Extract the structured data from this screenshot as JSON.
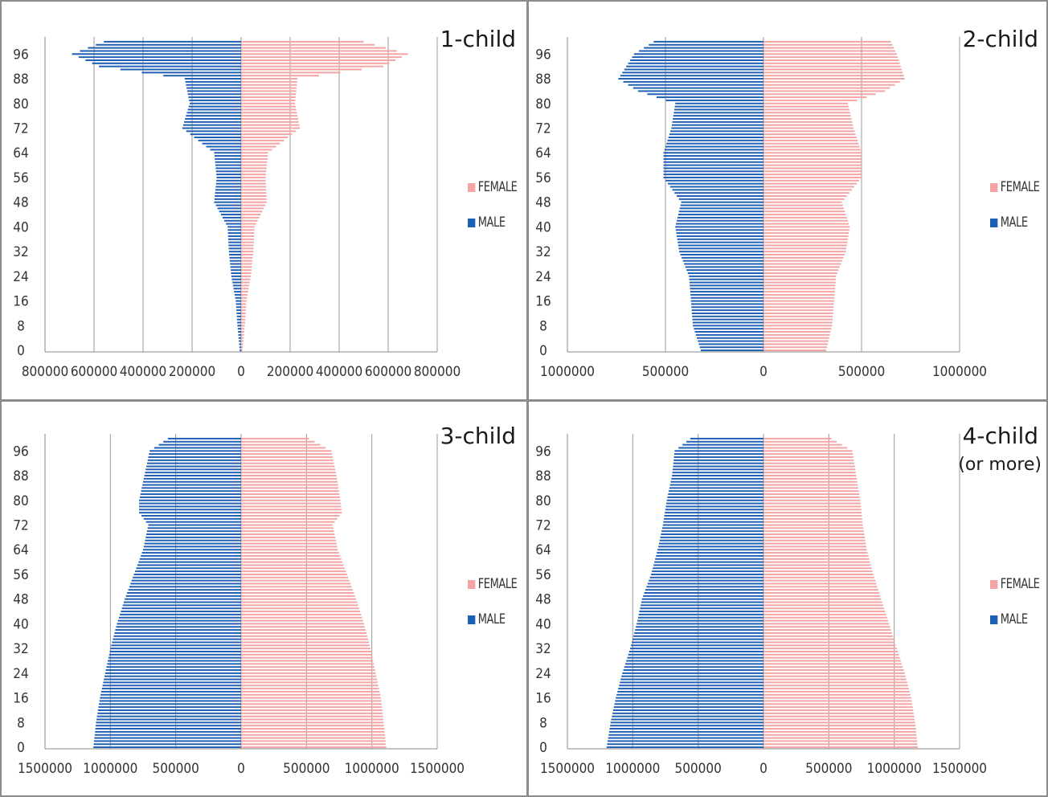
{
  "colors": {
    "female": "#f4a4a4",
    "male": "#1f5fb5",
    "grid": "#9a9a9a",
    "axis": "#888888"
  },
  "legend": {
    "female": "FEMALE",
    "male": "MALE"
  },
  "y_tick_labels": [
    "0",
    "8",
    "16",
    "24",
    "32",
    "40",
    "48",
    "56",
    "64",
    "72",
    "80",
    "88",
    "96"
  ],
  "chart_data": [
    {
      "type": "bar",
      "orientation": "horizontal",
      "title": "1-child",
      "subtitle": "",
      "x_tick_labels": [
        "800000",
        "600000",
        "400000",
        "200000",
        "0",
        "200000",
        "400000",
        "600000",
        "800000"
      ],
      "xlim": [
        -800000,
        800000
      ],
      "grid": true,
      "legend_position": "right",
      "ages_sampled": [
        0,
        8,
        16,
        24,
        32,
        40,
        48,
        56,
        64,
        72,
        80,
        88,
        92,
        96,
        100
      ],
      "series": [
        {
          "name": "FEMALE",
          "values": [
            6000,
            15000,
            22000,
            40000,
            50000,
            55000,
            105000,
            100000,
            110000,
            240000,
            220000,
            230000,
            580000,
            680000,
            500000
          ]
        },
        {
          "name": "MALE",
          "values": [
            -6000,
            -15000,
            -22000,
            -40000,
            -50000,
            -55000,
            -110000,
            -100000,
            -110000,
            -240000,
            -210000,
            -230000,
            -580000,
            -690000,
            -560000
          ]
        }
      ]
    },
    {
      "type": "bar",
      "orientation": "horizontal",
      "title": "2-child",
      "subtitle": "",
      "x_tick_labels": [
        "1000000",
        "500000",
        "0",
        "500000",
        "1000000"
      ],
      "xlim": [
        -1000000,
        1000000
      ],
      "grid": true,
      "legend_position": "right",
      "ages_sampled": [
        0,
        8,
        16,
        24,
        32,
        40,
        48,
        56,
        64,
        72,
        80,
        84,
        88,
        92,
        96,
        100
      ],
      "series": [
        {
          "name": "FEMALE",
          "values": [
            320000,
            350000,
            360000,
            370000,
            420000,
            440000,
            400000,
            500000,
            500000,
            460000,
            430000,
            620000,
            720000,
            700000,
            680000,
            650000
          ]
        },
        {
          "name": "MALE",
          "values": [
            -320000,
            -360000,
            -370000,
            -380000,
            -430000,
            -450000,
            -420000,
            -510000,
            -510000,
            -470000,
            -450000,
            -640000,
            -740000,
            -700000,
            -660000,
            -560000
          ]
        }
      ]
    },
    {
      "type": "bar",
      "orientation": "horizontal",
      "title": "3-child",
      "subtitle": "",
      "x_tick_labels": [
        "1500000",
        "1000000",
        "500000",
        "0",
        "500000",
        "1000000",
        "1500000"
      ],
      "xlim": [
        -1500000,
        1500000
      ],
      "grid": true,
      "legend_position": "right",
      "ages_sampled": [
        0,
        8,
        16,
        24,
        32,
        40,
        48,
        56,
        64,
        72,
        76,
        80,
        88,
        96,
        100
      ],
      "series": [
        {
          "name": "FEMALE",
          "values": [
            1110000,
            1090000,
            1070000,
            1030000,
            990000,
            940000,
            880000,
            810000,
            740000,
            700000,
            770000,
            760000,
            730000,
            690000,
            520000
          ]
        },
        {
          "name": "MALE",
          "values": [
            -1130000,
            -1110000,
            -1080000,
            -1040000,
            -1000000,
            -950000,
            -890000,
            -820000,
            -750000,
            -710000,
            -780000,
            -780000,
            -740000,
            -700000,
            -560000
          ]
        }
      ]
    },
    {
      "type": "bar",
      "orientation": "horizontal",
      "title": "4-child",
      "subtitle": "(or more)",
      "x_tick_labels": [
        "1500000",
        "1000000",
        "500000",
        "0",
        "500000",
        "1000000",
        "1500000"
      ],
      "xlim": [
        -1500000,
        1500000
      ],
      "grid": true,
      "legend_position": "right",
      "ages_sampled": [
        0,
        8,
        16,
        24,
        32,
        40,
        48,
        56,
        64,
        72,
        80,
        88,
        96,
        100
      ],
      "series": [
        {
          "name": "FEMALE",
          "values": [
            1180000,
            1160000,
            1130000,
            1080000,
            1020000,
            960000,
            900000,
            840000,
            790000,
            760000,
            740000,
            710000,
            680000,
            520000
          ]
        },
        {
          "name": "MALE",
          "values": [
            -1200000,
            -1170000,
            -1130000,
            -1080000,
            -1020000,
            -970000,
            -930000,
            -860000,
            -810000,
            -770000,
            -740000,
            -700000,
            -680000,
            -560000
          ]
        }
      ]
    }
  ]
}
